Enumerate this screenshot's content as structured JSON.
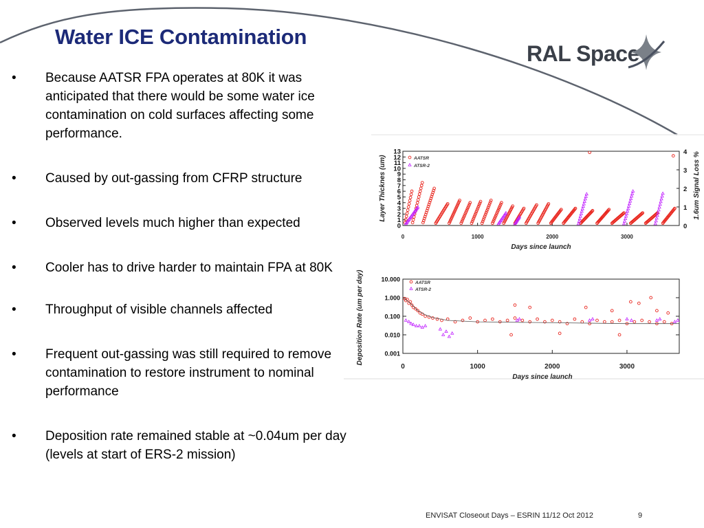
{
  "slide": {
    "title": "Water ICE Contamination",
    "logo_text": "RAL Space",
    "bullet_glyph": "•",
    "bullets": [
      "Because AATSR FPA operates at 80K it was anticipated that there would be some water ice contamination on cold surfaces affecting some performance.",
      "Caused by out-gassing from CFRP structure",
      "Observed levels much higher than expected",
      "Cooler has to drive harder to maintain FPA at 80K",
      "Throughput of visible channels affected",
      "Frequent out-gassing was still required to remove contamination to restore instrument to nominal performance",
      "Deposition rate remained stable at ~0.04um per day (levels at start of ERS-2 mission)"
    ],
    "footer": {
      "text": "ENVISAT Closeout Days – ESRIN 11/12 Oct 2012",
      "page": "9"
    },
    "colors": {
      "title": "#1c2a78",
      "aatsr": "#e8221a",
      "atsr2": "#c020ff"
    }
  },
  "chart_data": [
    {
      "type": "scatter",
      "title": "",
      "xlabel": "Days since launch",
      "ylabel": "Layer Thicknes (um)",
      "y2label": "1.6um Signal Loss %",
      "xlim": [
        0,
        3700
      ],
      "ylim": [
        0,
        13
      ],
      "y2lim": [
        0,
        4
      ],
      "xticks": [
        0,
        1000,
        2000,
        3000
      ],
      "yticks": [
        0,
        1,
        2,
        3,
        4,
        5,
        6,
        7,
        8,
        9,
        10,
        11,
        12,
        13
      ],
      "y2ticks": [
        0,
        1,
        2,
        3,
        4
      ],
      "legend": [
        "AATSR",
        "ATSR-2"
      ],
      "legend_position": "top-left",
      "series": [
        {
          "name": "AATSR",
          "sawtooth_cycles": [
            [
              30,
              120,
              0.5,
              6.0
            ],
            [
              130,
              260,
              0.5,
              7.5
            ],
            [
              270,
              420,
              0.5,
              6.5
            ],
            [
              440,
              600,
              0.4,
              3.8
            ],
            [
              620,
              760,
              0.4,
              4.4
            ],
            [
              780,
              900,
              0.4,
              4.0
            ],
            [
              920,
              1040,
              0.4,
              4.2
            ],
            [
              1060,
              1180,
              0.4,
              4.4
            ],
            [
              1200,
              1320,
              0.4,
              4.0
            ],
            [
              1350,
              1470,
              0.4,
              3.4
            ],
            [
              1500,
              1620,
              0.4,
              3.0
            ],
            [
              1650,
              1790,
              0.4,
              3.6
            ],
            [
              1810,
              1950,
              0.4,
              3.8
            ],
            [
              1980,
              2120,
              0.4,
              2.8
            ],
            [
              2150,
              2310,
              0.4,
              3.0
            ],
            [
              2380,
              2540,
              0.4,
              2.6
            ],
            [
              2600,
              2760,
              0.4,
              2.8
            ],
            [
              2800,
              2960,
              0.4,
              2.2
            ],
            [
              3050,
              3210,
              0.4,
              2.2
            ],
            [
              3250,
              3410,
              0.4,
              2.2
            ],
            [
              3480,
              3640,
              0.4,
              3.0
            ]
          ],
          "points": [
            [
              2500,
              12.8
            ],
            [
              3620,
              12.2
            ]
          ]
        },
        {
          "name": "ATSR-2",
          "sawtooth_cycles": [
            [
              40,
              200,
              0.3,
              3.2
            ],
            [
              1280,
              1380,
              0.3,
              2.2
            ],
            [
              1500,
              1560,
              0.3,
              1.5
            ],
            [
              2350,
              2460,
              0.3,
              5.5
            ],
            [
              2960,
              3080,
              0.3,
              6.0
            ],
            [
              3380,
              3480,
              0.3,
              5.6
            ]
          ]
        }
      ]
    },
    {
      "type": "scatter",
      "title": "",
      "xlabel": "Days since launch",
      "ylabel": "Deposition Rate (um per day)",
      "xlim": [
        0,
        3700
      ],
      "ylim": [
        0.001,
        10
      ],
      "yscale": "log",
      "xticks": [
        0,
        1000,
        2000,
        3000
      ],
      "yticks": [
        10,
        1,
        0.1,
        0.01,
        0.001
      ],
      "ytick_labels": [
        "10.000",
        "1.000",
        "0.100",
        "0.010",
        "0.001"
      ],
      "legend": [
        "AATSR",
        "ATSR-2"
      ],
      "legend_position": "top-left",
      "series": [
        {
          "name": "AATSR",
          "points": [
            [
              20,
              0.9
            ],
            [
              40,
              0.7
            ],
            [
              60,
              0.8
            ],
            [
              80,
              0.5
            ],
            [
              100,
              0.6
            ],
            [
              120,
              0.4
            ],
            [
              140,
              0.3
            ],
            [
              170,
              0.25
            ],
            [
              200,
              0.2
            ],
            [
              230,
              0.15
            ],
            [
              260,
              0.13
            ],
            [
              300,
              0.1
            ],
            [
              350,
              0.09
            ],
            [
              400,
              0.08
            ],
            [
              460,
              0.07
            ],
            [
              520,
              0.06
            ],
            [
              600,
              0.07
            ],
            [
              700,
              0.05
            ],
            [
              800,
              0.06
            ],
            [
              900,
              0.08
            ],
            [
              1000,
              0.05
            ],
            [
              1100,
              0.06
            ],
            [
              1200,
              0.07
            ],
            [
              1300,
              0.05
            ],
            [
              1400,
              0.06
            ],
            [
              1500,
              0.08
            ],
            [
              1600,
              0.06
            ],
            [
              1700,
              0.05
            ],
            [
              1800,
              0.07
            ],
            [
              1900,
              0.05
            ],
            [
              2000,
              0.06
            ],
            [
              2100,
              0.05
            ],
            [
              2200,
              0.04
            ],
            [
              2300,
              0.07
            ],
            [
              2400,
              0.05
            ],
            [
              2500,
              0.04
            ],
            [
              2600,
              0.06
            ],
            [
              2700,
              0.05
            ],
            [
              2800,
              0.05
            ],
            [
              2900,
              0.06
            ],
            [
              3000,
              0.04
            ],
            [
              3100,
              0.05
            ],
            [
              3200,
              0.06
            ],
            [
              3300,
              0.05
            ],
            [
              3400,
              0.04
            ],
            [
              3500,
              0.05
            ],
            [
              3600,
              0.04
            ],
            [
              3050,
              0.6
            ],
            [
              3160,
              0.5
            ],
            [
              3320,
              1.0
            ],
            [
              1450,
              0.01
            ],
            [
              1500,
              0.4
            ],
            [
              1700,
              0.3
            ],
            [
              2450,
              0.3
            ],
            [
              2800,
              0.2
            ],
            [
              3400,
              0.2
            ],
            [
              3550,
              0.15
            ],
            [
              2100,
              0.012
            ],
            [
              2900,
              0.01
            ]
          ]
        },
        {
          "name": "ATSR-2",
          "points": [
            [
              40,
              0.06
            ],
            [
              80,
              0.05
            ],
            [
              110,
              0.04
            ],
            [
              140,
              0.035
            ],
            [
              180,
              0.03
            ],
            [
              220,
              0.03
            ],
            [
              260,
              0.025
            ],
            [
              300,
              0.03
            ],
            [
              500,
              0.02
            ],
            [
              540,
              0.01
            ],
            [
              580,
              0.015
            ],
            [
              620,
              0.008
            ],
            [
              660,
              0.012
            ],
            [
              1530,
              0.06
            ],
            [
              1560,
              0.07
            ],
            [
              2500,
              0.06
            ],
            [
              2540,
              0.07
            ],
            [
              3000,
              0.07
            ],
            [
              3060,
              0.06
            ],
            [
              3400,
              0.06
            ],
            [
              3440,
              0.07
            ],
            [
              3640,
              0.05
            ],
            [
              3680,
              0.06
            ]
          ]
        },
        {
          "name": "Fit",
          "points": [
            [
              0,
              1.0
            ],
            [
              100,
              0.5
            ],
            [
              200,
              0.2
            ],
            [
              300,
              0.12
            ],
            [
              400,
              0.085
            ],
            [
              600,
              0.06
            ],
            [
              1000,
              0.05
            ],
            [
              2000,
              0.045
            ],
            [
              3000,
              0.04
            ],
            [
              3700,
              0.04
            ]
          ]
        }
      ]
    }
  ]
}
